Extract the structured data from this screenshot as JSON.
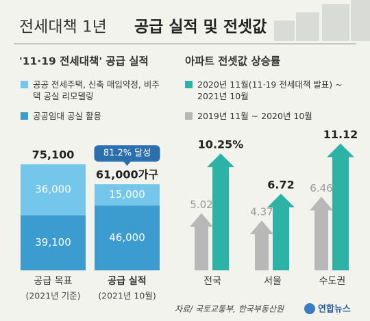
{
  "title": [
    "전세대책 1년",
    "공급 실적 및 전셋값"
  ],
  "charts": [
    {
      "type": "stacked-bar",
      "title": "'11·19 전세대책' 공급 실적",
      "categories": [
        "공급 목표",
        "공급 실적"
      ],
      "category_notes": [
        "(2021년 기준)",
        "(2021년 10월)"
      ],
      "series": [
        {
          "name": "공공임대 공실 활용",
          "color": "#3d9ccf",
          "values": [
            39100,
            46000
          ],
          "value_labels": [
            "39,100",
            "46,000"
          ]
        },
        {
          "name": "공공 전세주택, 신축 매입약정, 비주택 공실 리모델링",
          "color": "#74c7ea",
          "values": [
            36000,
            15000
          ],
          "value_labels": [
            "36,000",
            "15,000"
          ]
        }
      ],
      "totals": [
        75100,
        61000
      ],
      "total_labels": [
        "75,100",
        "61,000가구"
      ],
      "annotation": "81.2% 달성",
      "ylim": [
        0,
        80000
      ]
    },
    {
      "type": "arrow",
      "title": "아파트 전셋값 상승률",
      "categories": [
        "전국",
        "서울",
        "수도권"
      ],
      "series": [
        {
          "name": "2019년 11월 ~ 2020년 10월",
          "color": "#b8b8b8",
          "values": [
            5.02,
            4.37,
            6.46
          ]
        },
        {
          "name": "2020년 11월(11·19 전세대책 발표) ~ 2021년 10월",
          "color": "#2db3a6",
          "values": [
            10.25,
            6.72,
            11.12
          ],
          "value_labels": [
            "10.25%",
            "6.72",
            "11.12"
          ]
        }
      ],
      "ylim": [
        0,
        12
      ]
    }
  ],
  "source": "자료/ 국토교통부, 한국부동산원",
  "logo": "연합뉴스"
}
